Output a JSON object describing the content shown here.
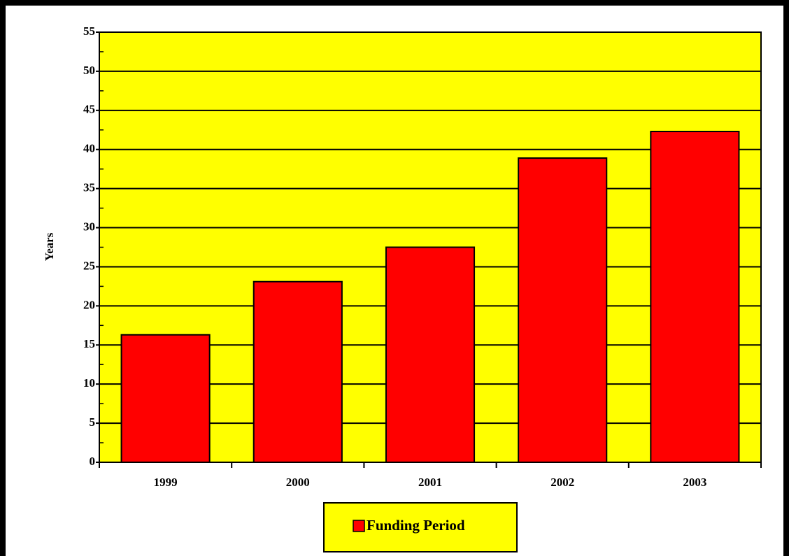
{
  "chart_data": {
    "type": "bar",
    "y_label": "Years",
    "categories": [
      "1999",
      "2000",
      "2001",
      "2002",
      "2003"
    ],
    "series": [
      {
        "name": "Funding Period",
        "color": "#ff0000",
        "values": [
          16.3,
          23.1,
          27.5,
          38.9,
          42.3
        ]
      }
    ],
    "ylim": [
      0,
      55
    ],
    "yticks": [
      0,
      5,
      10,
      15,
      20,
      25,
      30,
      35,
      40,
      45,
      50,
      55
    ],
    "grid": true,
    "plot_background": "#ffff00",
    "legend": "bottom"
  }
}
